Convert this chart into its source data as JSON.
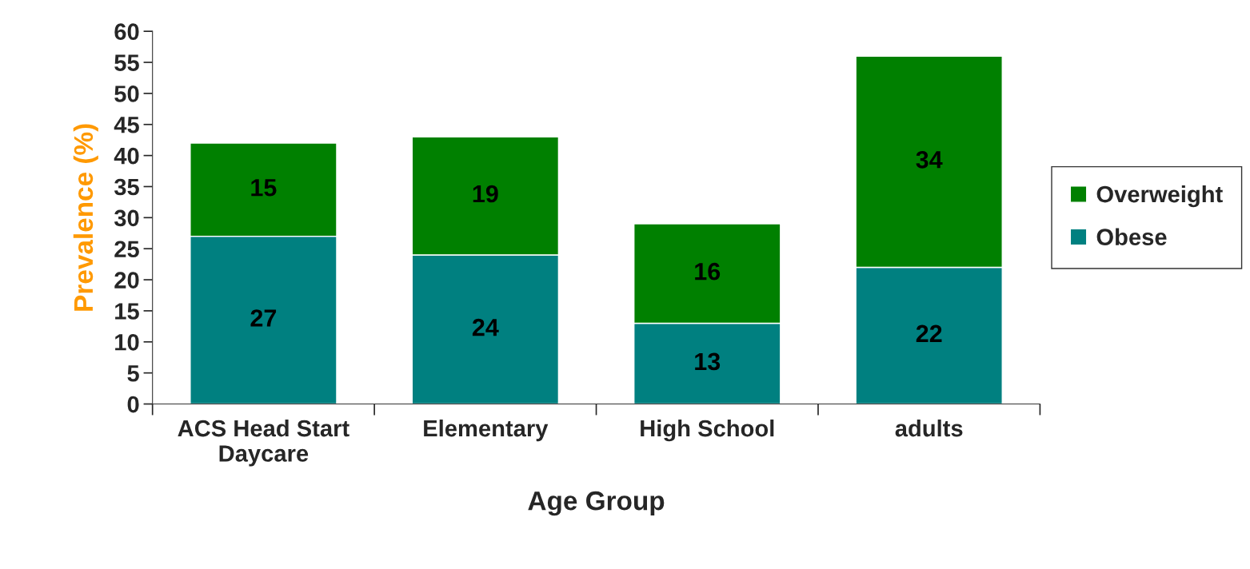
{
  "chart_data": {
    "type": "bar",
    "stacked": true,
    "xlabel": "Age Group",
    "ylabel": "Prevalence (%)",
    "categories": [
      "ACS Head Start\nDaycare",
      "Elementary",
      "High School",
      "adults"
    ],
    "series": [
      {
        "name": "Obese",
        "color": "#008080",
        "values": [
          27,
          24,
          13,
          22
        ]
      },
      {
        "name": "Overweight",
        "color": "#008000",
        "values": [
          15,
          19,
          16,
          34
        ]
      }
    ],
    "ylim": [
      0,
      60
    ],
    "yticks": [
      0,
      5,
      10,
      15,
      20,
      25,
      30,
      35,
      40,
      45,
      50,
      55,
      60
    ],
    "data_labels": true,
    "legend": "right",
    "grid": false
  }
}
